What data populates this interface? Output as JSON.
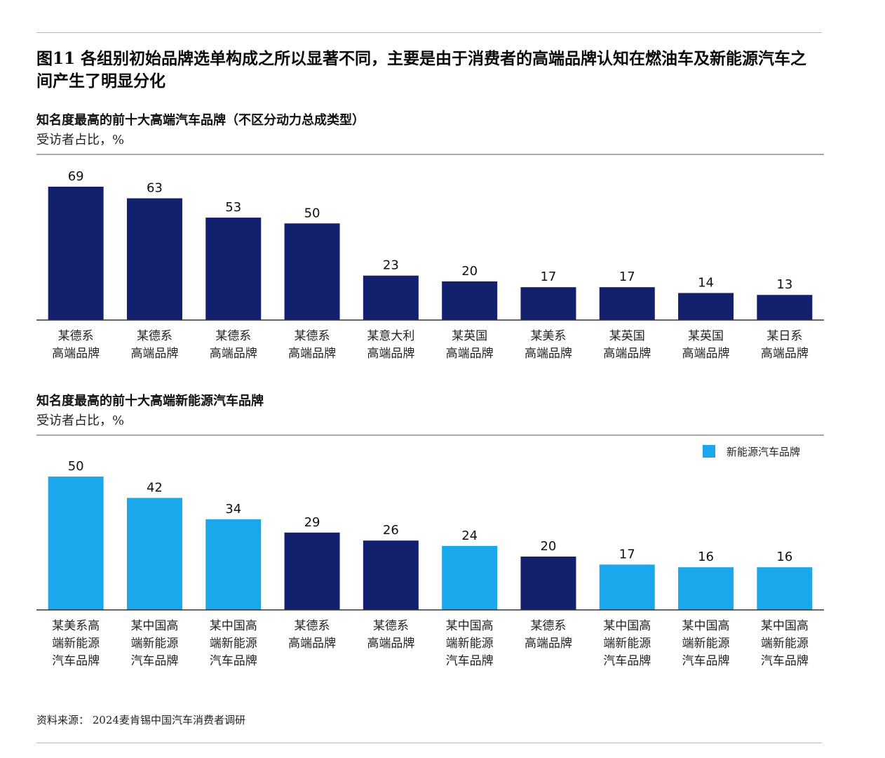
{
  "figure": {
    "title": "图11 各组别初始品牌选单构成之所以显著不同，主要是由于消费者的高端品牌认知在燃油车及新能源汽车之间产生了明显分化"
  },
  "colors": {
    "dark": "#12206e",
    "light": "#1aa7ec"
  },
  "chart_data": [
    {
      "type": "bar",
      "title": "知名度最高的前十大高端汽车品牌（不区分动力总成类型）",
      "subtitle": "受访者占比，%",
      "categories": [
        [
          "某德系",
          "高端品牌"
        ],
        [
          "某德系",
          "高端品牌"
        ],
        [
          "某德系",
          "高端品牌"
        ],
        [
          "某德系",
          "高端品牌"
        ],
        [
          "某意大利",
          "高端品牌"
        ],
        [
          "某英国",
          "高端品牌"
        ],
        [
          "某美系",
          "高端品牌"
        ],
        [
          "某英国",
          "高端品牌"
        ],
        [
          "某英国",
          "高端品牌"
        ],
        [
          "某日系",
          "高端品牌"
        ]
      ],
      "values": [
        69,
        63,
        53,
        50,
        23,
        20,
        17,
        17,
        14,
        13
      ],
      "bar_colors": [
        "dark",
        "dark",
        "dark",
        "dark",
        "dark",
        "dark",
        "dark",
        "dark",
        "dark",
        "dark"
      ],
      "ylim": [
        0,
        69
      ],
      "grid": false
    },
    {
      "type": "bar",
      "title": "知名度最高的前十大高端新能源汽车品牌",
      "subtitle": "受访者占比，%",
      "categories": [
        [
          "某美系高",
          "端新能源",
          "汽车品牌"
        ],
        [
          "某中国高",
          "端新能源",
          "汽车品牌"
        ],
        [
          "某中国高",
          "端新能源",
          "汽车品牌"
        ],
        [
          "某德系",
          "高端品牌"
        ],
        [
          "某德系",
          "高端品牌"
        ],
        [
          "某中国高",
          "端新能源",
          "汽车品牌"
        ],
        [
          "某德系",
          "高端品牌"
        ],
        [
          "某中国高",
          "端新能源",
          "汽车品牌"
        ],
        [
          "某中国高",
          "端新能源",
          "汽车品牌"
        ],
        [
          "某中国高",
          "端新能源",
          "汽车品牌"
        ]
      ],
      "values": [
        50,
        42,
        34,
        29,
        26,
        24,
        20,
        17,
        16,
        16
      ],
      "bar_colors": [
        "light",
        "light",
        "light",
        "dark",
        "dark",
        "light",
        "dark",
        "light",
        "light",
        "light"
      ],
      "ylim": [
        0,
        50
      ],
      "grid": false,
      "legend": {
        "placement": "top-right",
        "entries": [
          {
            "label": "新能源汽车品牌",
            "color": "light"
          }
        ]
      }
    }
  ],
  "source": "资料来源：  2024麦肯锡中国汽车消费者调研"
}
